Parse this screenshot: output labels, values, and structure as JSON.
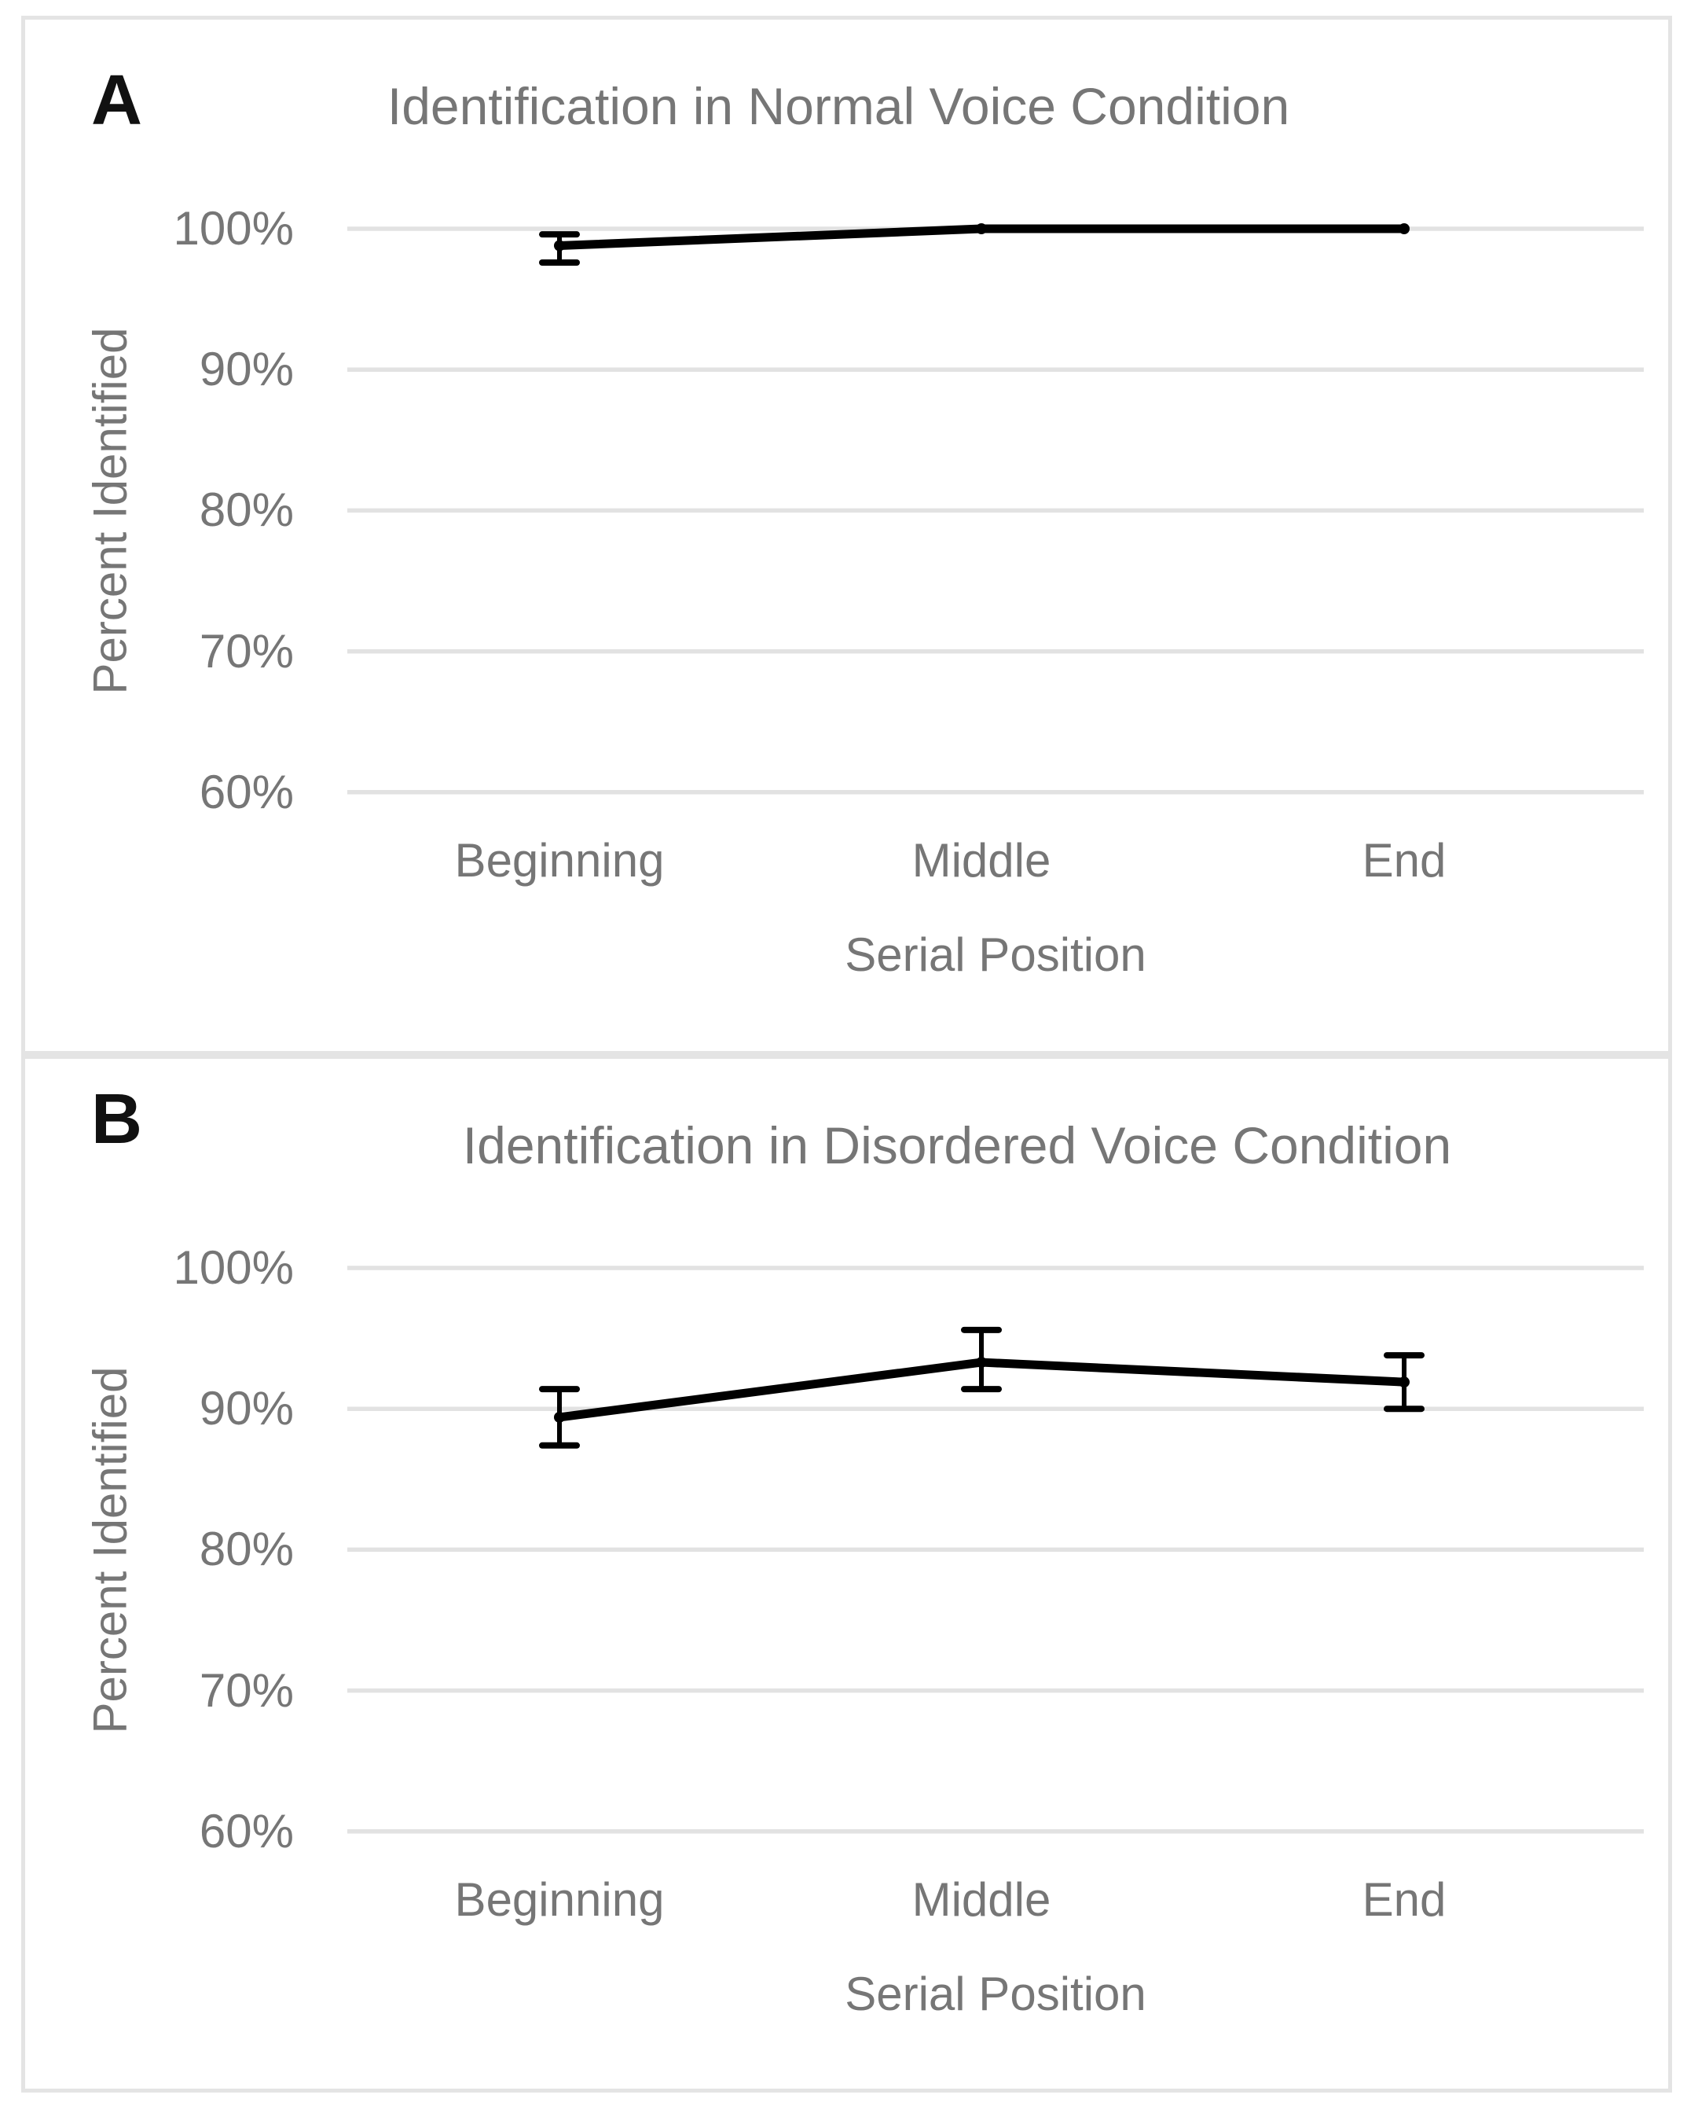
{
  "figure": {
    "panel_letters": [
      "A",
      "B"
    ]
  },
  "chart_data": [
    {
      "type": "line",
      "title": "Identification in Normal Voice Condition",
      "xlabel": "Serial Position",
      "ylabel": "Percent Identified",
      "categories": [
        "Beginning",
        "Middle",
        "End"
      ],
      "values": [
        98.8,
        100,
        100
      ],
      "error_bars": [
        {
          "high": 99.6,
          "low": 97.6
        },
        null,
        null
      ],
      "ytick_labels": [
        "100%",
        "90%",
        "80%",
        "70%",
        "60%"
      ],
      "ytick_values": [
        100,
        90,
        80,
        70,
        60
      ],
      "ylim": [
        60,
        100
      ],
      "grid": "horizontal-only",
      "legend": "none",
      "marker": "circle",
      "series_color": "#000000",
      "text_color": "#767676",
      "gridline_color": "#e2e2e2"
    },
    {
      "type": "line",
      "title": "Identification in Disordered Voice Condition",
      "xlabel": "Serial Position",
      "ylabel": "Percent Identified",
      "categories": [
        "Beginning",
        "Middle",
        "End"
      ],
      "values": [
        89.4,
        93.3,
        91.9
      ],
      "error_bars": [
        {
          "high": 91.4,
          "low": 87.4
        },
        {
          "high": 95.6,
          "low": 91.4
        },
        {
          "high": 93.8,
          "low": 90.0
        }
      ],
      "ytick_labels": [
        "100%",
        "90%",
        "80%",
        "70%",
        "60%"
      ],
      "ytick_values": [
        100,
        90,
        80,
        70,
        60
      ],
      "ylim": [
        60,
        100
      ],
      "grid": "horizontal-only",
      "legend": "none",
      "marker": "circle",
      "series_color": "#000000",
      "text_color": "#767676",
      "gridline_color": "#e2e2e2"
    }
  ]
}
